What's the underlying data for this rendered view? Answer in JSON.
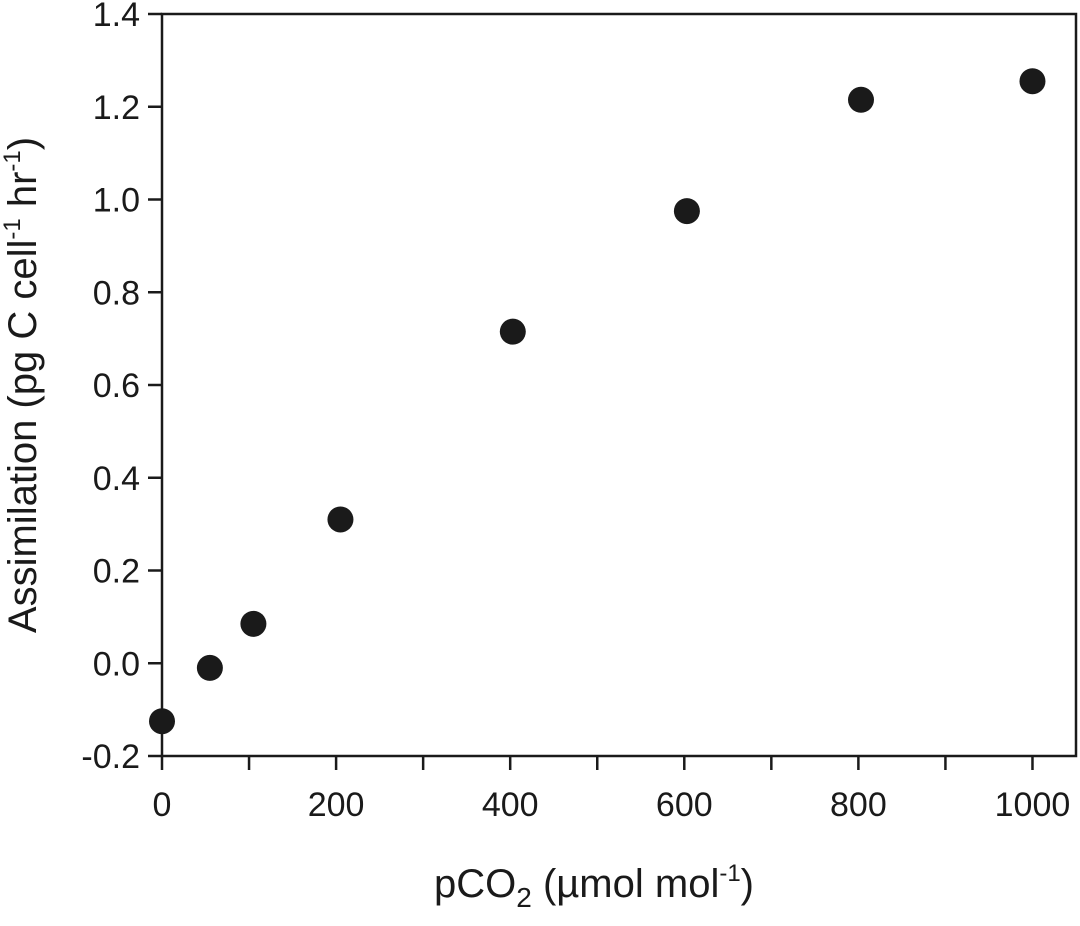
{
  "chart_data": {
    "type": "scatter",
    "xlabel": {
      "main": "pCO",
      "sub": "2",
      "unit_open": " (µmol mol",
      "unit_sup": "-1",
      "unit_close": ")"
    },
    "ylabel": {
      "main": "Assimilation (pg C cell",
      "sup1": "-1",
      "mid": " hr",
      "sup2": "-1",
      "close": ")"
    },
    "xlim": [
      0,
      1050
    ],
    "ylim": [
      -0.2,
      1.4
    ],
    "x_ticks": [
      0,
      200,
      400,
      600,
      800,
      1000
    ],
    "x_tick_labels": [
      "0",
      "200",
      "400",
      "600",
      "800",
      "1000"
    ],
    "x_minor_ticks": [
      100,
      300,
      500,
      700,
      900
    ],
    "y_ticks": [
      -0.2,
      0.0,
      0.2,
      0.4,
      0.6,
      0.8,
      1.0,
      1.2,
      1.4
    ],
    "y_tick_labels": [
      "-0.2",
      "0.0",
      "0.2",
      "0.4",
      "0.6",
      "0.8",
      "1.0",
      "1.2",
      "1.4"
    ],
    "grid": false,
    "marker_color": "#1a1a1a",
    "series": [
      {
        "points": [
          {
            "x": 0,
            "y": -0.125
          },
          {
            "x": 55,
            "y": -0.01
          },
          {
            "x": 105,
            "y": 0.085
          },
          {
            "x": 205,
            "y": 0.31
          },
          {
            "x": 403,
            "y": 0.715
          },
          {
            "x": 603,
            "y": 0.975
          },
          {
            "x": 803,
            "y": 1.215
          },
          {
            "x": 1000,
            "y": 1.255
          }
        ]
      }
    ]
  }
}
